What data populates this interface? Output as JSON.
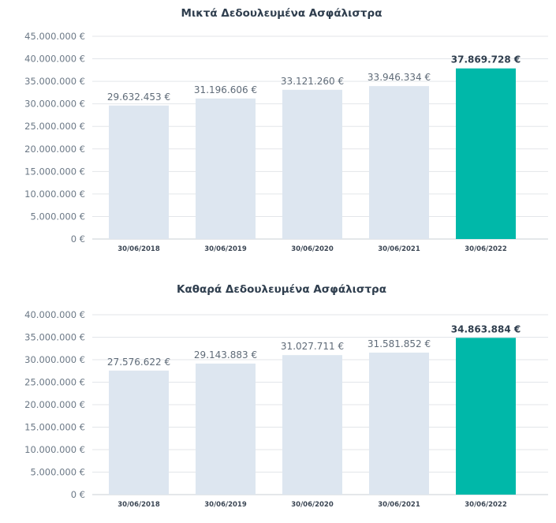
{
  "colors": {
    "bar": "#dde6f0",
    "highlight": "#00b8a9",
    "grid": "#e3e6ea",
    "text": "#2f3e4e"
  },
  "chart_data": [
    {
      "type": "bar",
      "title": "Μικτά Δεδουλευμένα Ασφάλιστρα",
      "categories": [
        "30/06/2018",
        "30/06/2019",
        "30/06/2020",
        "30/06/2021",
        "30/06/2022"
      ],
      "values": [
        29632453,
        31196606,
        33121260,
        33946334,
        37869728
      ],
      "value_labels": [
        "29.632.453 €",
        "31.196.606 €",
        "33.121.260 €",
        "33.946.334 €",
        "37.869.728 €"
      ],
      "highlight_index": 4,
      "ylim": [
        0,
        45000000
      ],
      "yticks": [
        0,
        5000000,
        10000000,
        15000000,
        20000000,
        25000000,
        30000000,
        35000000,
        40000000,
        45000000
      ],
      "ytick_labels": [
        "0 €",
        "5.000.000 €",
        "10.000.000 €",
        "15.000.000 €",
        "20.000.000 €",
        "25.000.000 €",
        "30.000.000 €",
        "35.000.000 €",
        "40.000.000 €",
        "45.000.000 €"
      ],
      "grid": true,
      "xlabel": "",
      "ylabel": ""
    },
    {
      "type": "bar",
      "title": "Καθαρά Δεδουλευμένα Ασφάλιστρα",
      "categories": [
        "30/06/2018",
        "30/06/2019",
        "30/06/2020",
        "30/06/2021",
        "30/06/2022"
      ],
      "values": [
        27576622,
        29143883,
        31027711,
        31581852,
        34863884
      ],
      "value_labels": [
        "27.576.622 €",
        "29.143.883 €",
        "31.027.711 €",
        "31.581.852 €",
        "34.863.884 €"
      ],
      "highlight_index": 4,
      "ylim": [
        0,
        40000000
      ],
      "yticks": [
        0,
        5000000,
        10000000,
        15000000,
        20000000,
        25000000,
        30000000,
        35000000,
        40000000
      ],
      "ytick_labels": [
        "0 €",
        "5.000.000 €",
        "10.000.000 €",
        "15.000.000 €",
        "20.000.000 €",
        "25.000.000 €",
        "30.000.000 €",
        "35.000.000 €",
        "40.000.000 €"
      ],
      "grid": true,
      "xlabel": "",
      "ylabel": ""
    }
  ]
}
